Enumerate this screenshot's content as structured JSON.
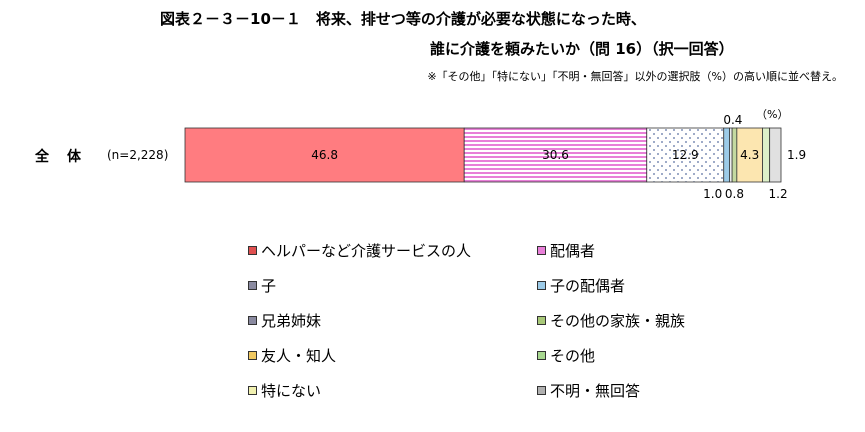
{
  "title_line1": "図表２－３－10－１　将来、排せつ等の介護が必要な状態になった時、",
  "title_line2": "誰に介護を頼みたいか（問 16）（択一回答）",
  "note": "※「その他」「特にない」「不明・無回答」以外の選択肢（%）の高い順に並べ替え。",
  "unit": "（%）",
  "row_label": "全体",
  "n_label": "(n=2,228)",
  "chart_data": {
    "type": "bar",
    "orientation": "horizontal-stacked-100",
    "categories": [
      "全体"
    ],
    "series": [
      {
        "name": "ヘルパーなど介護サービスの人",
        "values": [
          46.8
        ],
        "color": "#FF7C80",
        "pattern": "solid",
        "label": "46.8",
        "label_pos": "inside"
      },
      {
        "name": "配偶者",
        "values": [
          30.6
        ],
        "color": "#E87FD8",
        "pattern": "hstripes",
        "label": "30.6",
        "label_pos": "inside"
      },
      {
        "name": "子",
        "values": [
          12.9
        ],
        "color": "#5A6FA0",
        "pattern": "dots",
        "label": "12.9",
        "label_pos": "inside"
      },
      {
        "name": "子の配偶者",
        "values": [
          1.0
        ],
        "color": "#9CCBE8",
        "pattern": "solid",
        "label": "1.0",
        "label_pos": "below"
      },
      {
        "name": "兄弟姉妹",
        "values": [
          0.4
        ],
        "color": "#FFFFFF",
        "pattern": "solid",
        "label": "0.4",
        "label_pos": "above"
      },
      {
        "name": "その他の家族・親族",
        "values": [
          0.8
        ],
        "color": "#C4D9A0",
        "pattern": "solid",
        "label": "0.8",
        "label_pos": "below"
      },
      {
        "name": "友人・知人",
        "values": [
          4.3
        ],
        "color": "#FCE6B0",
        "pattern": "solid",
        "label": "4.3",
        "label_pos": "inside"
      },
      {
        "name": "その他",
        "values": [
          1.2
        ],
        "color": "#DDF0C8",
        "pattern": "solid",
        "label": "1.2",
        "label_pos": "below"
      },
      {
        "name": "特にない",
        "values": [
          0.0
        ],
        "color": "#FFFFE0",
        "pattern": "solid",
        "label": "",
        "label_pos": "none"
      },
      {
        "name": "不明・無回答",
        "values": [
          1.9
        ],
        "color": "#E0E0E0",
        "pattern": "solid",
        "label": "1.9",
        "label_pos": "right"
      }
    ],
    "legend": {
      "placement": "bottom",
      "columns": 2,
      "order": [
        "ヘルパーなど介護サービスの人",
        "配偶者",
        "子",
        "子の配偶者",
        "兄弟姉妹",
        "その他の家族・親族",
        "友人・知人",
        "その他",
        "特にない",
        "不明・無回答"
      ],
      "swatch_colors": [
        "#E05050",
        "#E87FD8",
        "#8A8AA0",
        "#9CCBE8",
        "#8A8AA0",
        "#A8C878",
        "#F0C860",
        "#A8D890",
        "#F0F0B0",
        "#B0B0B0"
      ]
    }
  }
}
